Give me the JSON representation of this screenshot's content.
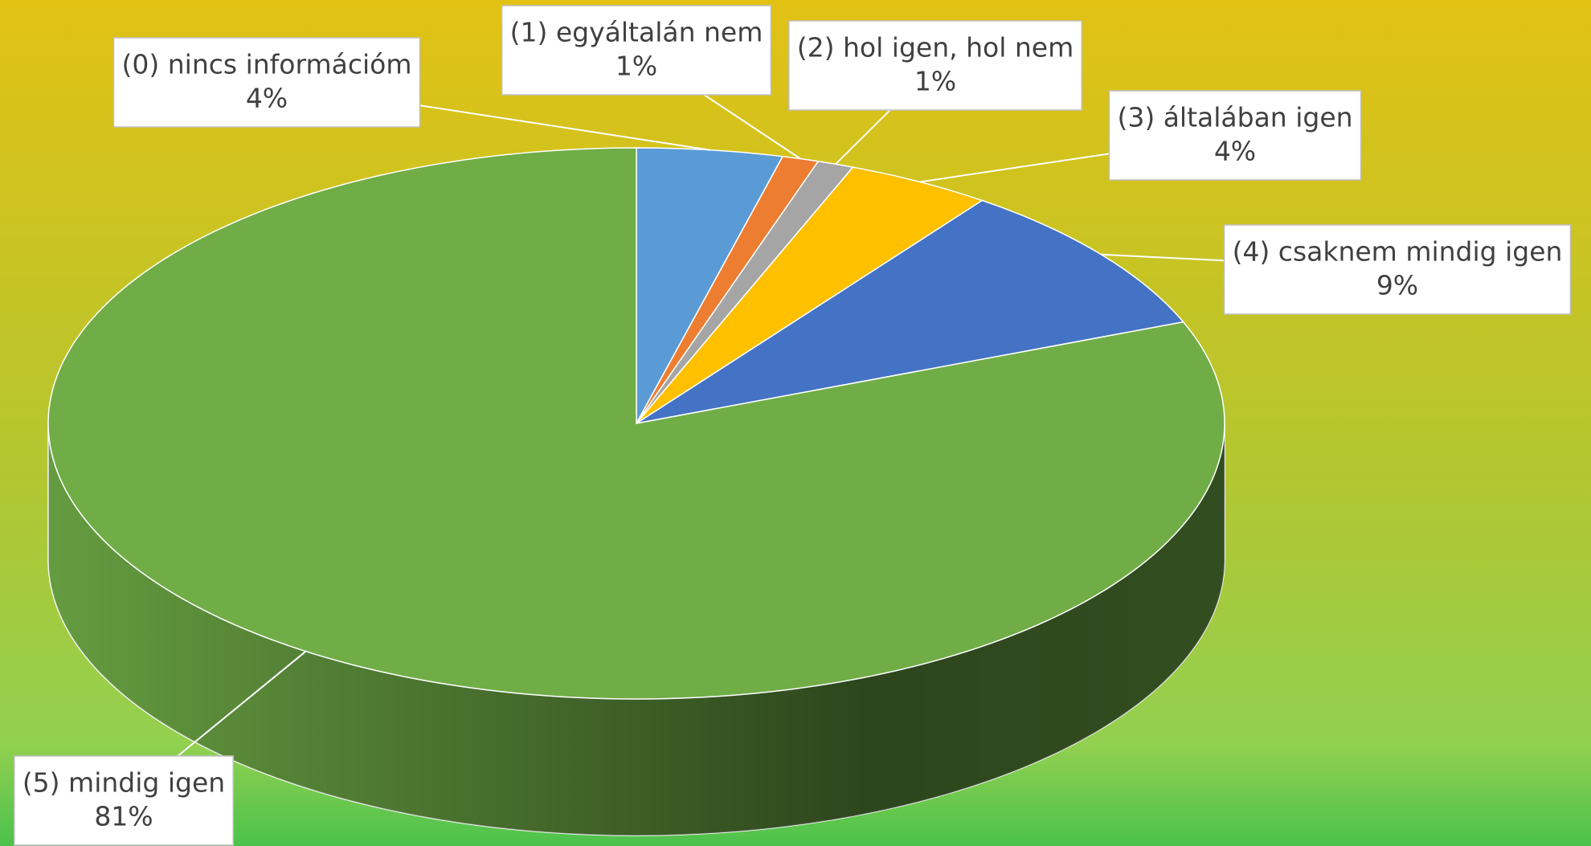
{
  "chart_data": {
    "type": "pie",
    "categories": [
      "(0) nincs információm",
      "(1) egyáltalán nem",
      "(2) hol igen, hol nem",
      "(3) általában igen",
      "(4) csaknem mindig igen",
      "(5) mindig igen"
    ],
    "values": [
      4,
      1,
      1,
      4,
      9,
      81
    ],
    "value_labels": [
      "4%",
      "1%",
      "1%",
      "4%",
      "9%",
      "81%"
    ],
    "colors": [
      "#5b9bd5",
      "#ed7d31",
      "#a5a5a5",
      "#ffc000",
      "#4472c4",
      "#70ad47"
    ]
  }
}
